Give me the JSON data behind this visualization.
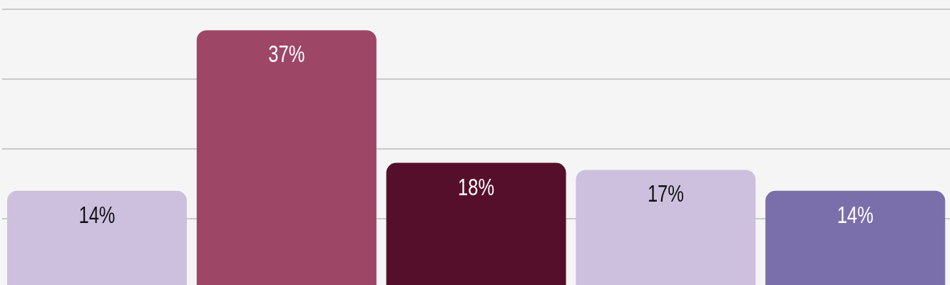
{
  "chart_data": {
    "type": "bar",
    "categories": [
      null,
      null,
      null,
      null,
      null
    ],
    "values": [
      14,
      37,
      18,
      17,
      14
    ],
    "colors": [
      "#cdc0de",
      "#9e4666",
      "#560f2a",
      "#cdc0de",
      "#7a6fab"
    ],
    "value_labels": [
      "14%",
      "37%",
      "18%",
      "17%",
      "14%"
    ],
    "ylim": [
      0,
      40
    ],
    "yticks": [
      {
        "value": 10,
        "label": null
      },
      {
        "value": 20,
        "label": null
      },
      {
        "value": 30,
        "label": null
      },
      {
        "value": 40,
        "label": null
      }
    ],
    "tick_labels": false,
    "grid": "y"
  }
}
